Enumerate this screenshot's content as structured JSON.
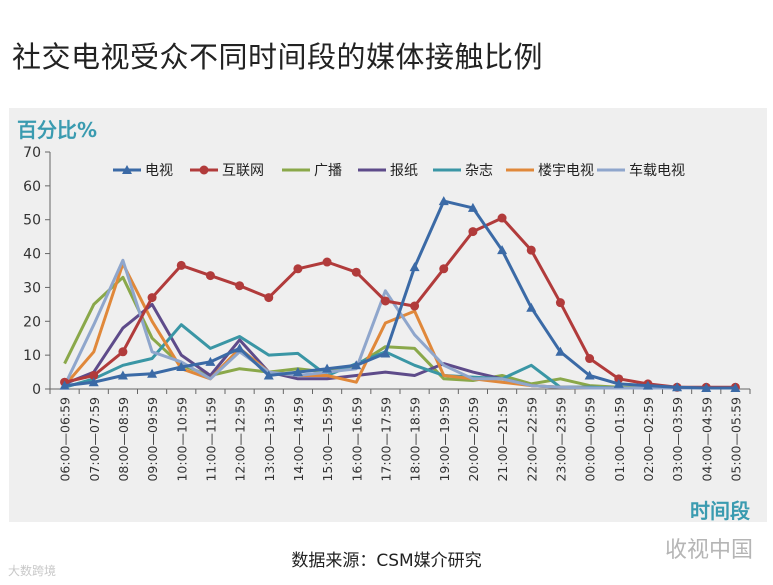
{
  "page_title": "社交电视受众不同时间段的媒体接触比例",
  "source_text": "数据来源：CSM媒介研究",
  "watermark_right": "收视中国",
  "watermark_left": "大数跨境",
  "chart_data": {
    "type": "line",
    "ylabel": "百分比%",
    "xlabel": "时间段",
    "ylim": [
      0,
      70
    ],
    "yticks": [
      0,
      10,
      20,
      30,
      40,
      50,
      60,
      70
    ],
    "grid": false,
    "legend_position": "top",
    "categories": [
      "06:00—06:59",
      "07:00—07:59",
      "08:00—08:59",
      "09:00—09:59",
      "10:00—10:59",
      "11:00—11:59",
      "12:00—12:59",
      "13:00—13:59",
      "14:00—14:59",
      "15:00—15:59",
      "16:00—16:59",
      "17:00—17:59",
      "18:00—18:59",
      "19:00—19:59",
      "20:00—20:59",
      "21:00—21:59",
      "22:00—22:59",
      "23:00—23:59",
      "00:00—00:59",
      "01:00—01:59",
      "02:00—02:59",
      "03:00—03:59",
      "04:00—04:59",
      "05:00—05:59"
    ],
    "series": [
      {
        "name": "电视",
        "color": "#3b6aa6",
        "marker": "triangle",
        "values": [
          1,
          2,
          4,
          4.5,
          6.5,
          8,
          12,
          4,
          5,
          6,
          7,
          10.5,
          36,
          55.5,
          53.5,
          41,
          24,
          11,
          4,
          1.5,
          1,
          0.5,
          0.3,
          0.3
        ]
      },
      {
        "name": "互联网",
        "color": "#b13b3b",
        "marker": "circle",
        "values": [
          2,
          4,
          11,
          27,
          36.5,
          33.5,
          30.5,
          27,
          35.5,
          37.5,
          34.5,
          26,
          24.5,
          35.5,
          46.5,
          50.5,
          41,
          25.5,
          9,
          3,
          1.5,
          0.5,
          0.5,
          0.5
        ]
      },
      {
        "name": "广播",
        "color": "#8aa84a",
        "marker": "none",
        "values": [
          7.5,
          25,
          33,
          15,
          7,
          4,
          6,
          5,
          6,
          5,
          7,
          12.5,
          12,
          3,
          2.5,
          4,
          1.5,
          3,
          1,
          0.5,
          0.5,
          0.3,
          0.3,
          0.3
        ]
      },
      {
        "name": "报纸",
        "color": "#5e4b8a",
        "marker": "none",
        "values": [
          1.5,
          5,
          18,
          25,
          10,
          4,
          14.5,
          5,
          3,
          3,
          4,
          5,
          4,
          7.5,
          5,
          3,
          1,
          0.5,
          0.5,
          0.3,
          0.3,
          0.3,
          0.3,
          0.3
        ]
      },
      {
        "name": "杂志",
        "color": "#3a96a5",
        "marker": "none",
        "values": [
          0.5,
          3,
          7,
          9,
          19,
          12,
          15.5,
          10,
          10.5,
          4,
          7.5,
          11,
          7,
          4,
          3.5,
          3,
          7,
          0.5,
          0.5,
          0.3,
          0.3,
          0.3,
          0.3,
          0.3
        ]
      },
      {
        "name": "楼宇电视",
        "color": "#e0883a",
        "marker": "none",
        "values": [
          1,
          11,
          37,
          20,
          6,
          3,
          12,
          5,
          4,
          4,
          2,
          19.5,
          23,
          4,
          3,
          2,
          1,
          0.5,
          0.3,
          0.3,
          0.3,
          0.3,
          0.3,
          0.3
        ]
      },
      {
        "name": "车载电视",
        "color": "#8fa6cc",
        "marker": "none",
        "values": [
          1,
          19,
          38,
          11,
          8,
          3,
          11,
          5,
          4,
          5,
          6,
          29,
          16,
          7,
          3,
          3,
          1,
          0.5,
          0.3,
          0.3,
          0.3,
          0.3,
          0.3,
          0.3
        ]
      }
    ]
  }
}
